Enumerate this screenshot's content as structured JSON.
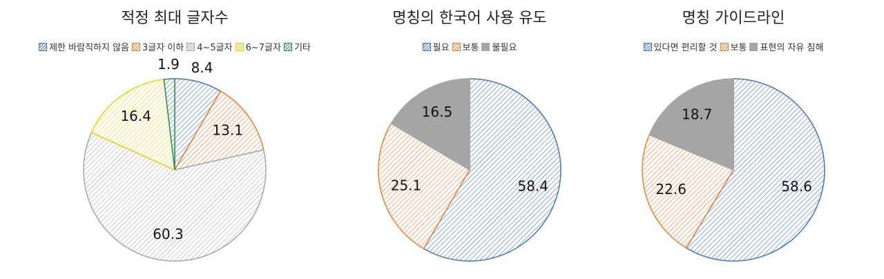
{
  "chart_data": [
    {
      "type": "pie",
      "title": "적정 최대 글자수",
      "categories": [
        "제한 바람직하지 않음",
        "3글자 이하",
        "4~5글자",
        "6~7글자",
        "기타"
      ],
      "values": [
        8.4,
        13.1,
        60.3,
        16.4,
        1.9
      ],
      "colors": [
        "#4472c4",
        "#ed7d31",
        "#a5a5a5",
        "#e8d400",
        "#2e8b57"
      ],
      "patterns": [
        "hatch",
        "hatch",
        "hatch",
        "hatch",
        "hatch"
      ]
    },
    {
      "type": "pie",
      "title": "명칭의 한국어 사용 유도",
      "categories": [
        "필요",
        "보통",
        "불필요"
      ],
      "values": [
        58.4,
        25.1,
        16.5
      ],
      "colors": [
        "#4472c4",
        "#ed7d31",
        "#a5a5a5"
      ],
      "patterns": [
        "hatch",
        "hatch",
        "solid"
      ]
    },
    {
      "type": "pie",
      "title": "명칭 가이드라인",
      "categories": [
        "있다면 편리할 것",
        "보통",
        "표현의 자유 침해"
      ],
      "values": [
        58.6,
        22.6,
        18.7
      ],
      "colors": [
        "#4472c4",
        "#ed7d31",
        "#a5a5a5"
      ],
      "patterns": [
        "hatch",
        "hatch",
        "solid"
      ]
    }
  ]
}
